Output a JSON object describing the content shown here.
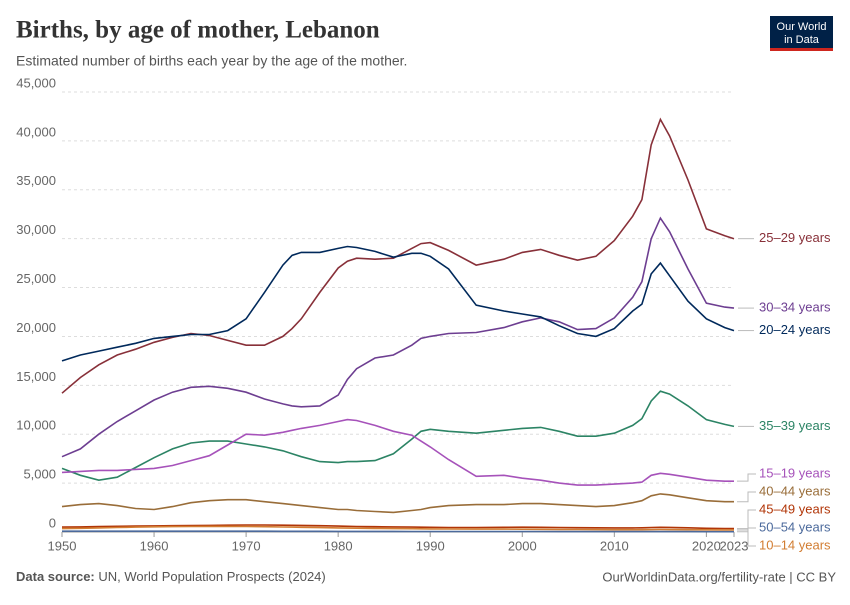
{
  "chart_data": {
    "type": "line",
    "title": "Births, by age of mother, Lebanon",
    "subtitle": "Estimated number of births each year by the age of the mother.",
    "logo": [
      "Our World",
      "in Data"
    ],
    "source_label": "Data source:",
    "source": "UN, World Population Prospects (2024)",
    "footer_right": "OurWorldinData.org/fertility-rate | CC BY",
    "x": [
      1950,
      1952,
      1954,
      1956,
      1958,
      1960,
      1962,
      1964,
      1966,
      1968,
      1970,
      1972,
      1974,
      1975,
      1976,
      1978,
      1980,
      1981,
      1982,
      1984,
      1986,
      1988,
      1989,
      1990,
      1992,
      1995,
      1998,
      2000,
      2002,
      2004,
      2006,
      2008,
      2010,
      2012,
      2013,
      2014,
      2015,
      2016,
      2018,
      2020,
      2022,
      2023
    ],
    "xlim": [
      1950,
      2023
    ],
    "xticks": [
      1950,
      1960,
      1970,
      1980,
      1990,
      2000,
      2010,
      2020,
      2023
    ],
    "ylim": [
      0,
      45000
    ],
    "yticks": [
      0,
      {
        "value": 5000,
        "label": "5,000"
      },
      {
        "value": 10000,
        "label": "10,000"
      },
      {
        "value": 15000,
        "label": "15,000"
      },
      {
        "value": 20000,
        "label": "20,000"
      },
      {
        "value": 25000,
        "label": "25,000"
      },
      {
        "value": 30000,
        "label": "30,000"
      },
      {
        "value": 35000,
        "label": "35,000"
      },
      {
        "value": 40000,
        "label": "40,000"
      },
      {
        "value": 45000,
        "label": "45,000"
      }
    ],
    "grid": true,
    "series": [
      {
        "name": "25–29 years",
        "color": "#883039",
        "values": [
          14200,
          15800,
          17100,
          18100,
          18700,
          19400,
          19900,
          20300,
          20100,
          19600,
          19100,
          19100,
          20000,
          20800,
          21800,
          24500,
          27000,
          27700,
          28000,
          27900,
          28000,
          29000,
          29500,
          29600,
          28800,
          27300,
          27900,
          28600,
          28900,
          28300,
          27800,
          28200,
          29800,
          32300,
          34000,
          39600,
          42200,
          40500,
          36000,
          31000,
          30300,
          30000
        ]
      },
      {
        "name": "30–34 years",
        "color": "#6d3e91",
        "values": [
          7700,
          8500,
          10000,
          11300,
          12400,
          13500,
          14300,
          14800,
          14900,
          14700,
          14300,
          13600,
          13100,
          12900,
          12800,
          12900,
          14000,
          15600,
          16700,
          17800,
          18100,
          19100,
          19800,
          20000,
          20300,
          20400,
          20900,
          21500,
          21900,
          21500,
          20700,
          20800,
          21900,
          24000,
          25600,
          30000,
          32100,
          30700,
          26900,
          23400,
          23000,
          22900
        ]
      },
      {
        "name": "20–24 years",
        "color": "#00295b",
        "values": [
          17500,
          18100,
          18500,
          18900,
          19300,
          19800,
          20000,
          20200,
          20200,
          20600,
          21800,
          24500,
          27300,
          28300,
          28600,
          28600,
          29000,
          29200,
          29100,
          28700,
          28100,
          28500,
          28500,
          28200,
          26900,
          23200,
          22600,
          22300,
          22000,
          21100,
          20300,
          20000,
          20800,
          22600,
          23300,
          26400,
          27500,
          26200,
          23600,
          21800,
          20900,
          20600
        ]
      },
      {
        "name": "35–39 years",
        "color": "#2c8465",
        "values": [
          6500,
          5800,
          5300,
          5600,
          6600,
          7600,
          8500,
          9100,
          9300,
          9300,
          9000,
          8700,
          8300,
          8000,
          7700,
          7200,
          7100,
          7200,
          7200,
          7300,
          8000,
          9500,
          10300,
          10500,
          10300,
          10100,
          10400,
          10600,
          10700,
          10300,
          9800,
          9800,
          10100,
          10900,
          11600,
          13400,
          14400,
          14100,
          12900,
          11500,
          11000,
          10800
        ]
      },
      {
        "name": "15–19 years",
        "color": "#a652ba",
        "values": [
          6100,
          6200,
          6300,
          6300,
          6400,
          6500,
          6800,
          7300,
          7800,
          8900,
          10000,
          9900,
          10200,
          10400,
          10600,
          10900,
          11300,
          11500,
          11400,
          10900,
          10300,
          9900,
          9300,
          8700,
          7400,
          5700,
          5800,
          5500,
          5300,
          5000,
          4800,
          4800,
          4900,
          5000,
          5100,
          5800,
          6000,
          5900,
          5600,
          5300,
          5200,
          5200
        ]
      },
      {
        "name": "40–44 years",
        "color": "#996d39",
        "values": [
          2600,
          2800,
          2900,
          2700,
          2400,
          2300,
          2600,
          3000,
          3200,
          3300,
          3300,
          3100,
          2900,
          2800,
          2700,
          2500,
          2300,
          2300,
          2200,
          2100,
          2000,
          2200,
          2300,
          2500,
          2700,
          2800,
          2800,
          2900,
          2900,
          2800,
          2700,
          2600,
          2700,
          3000,
          3200,
          3700,
          3900,
          3800,
          3500,
          3200,
          3100,
          3100
        ]
      },
      {
        "name": "45–49 years",
        "color": "#b13507",
        "values": [
          500,
          520,
          550,
          580,
          600,
          620,
          640,
          660,
          680,
          700,
          720,
          720,
          700,
          690,
          670,
          640,
          600,
          580,
          560,
          540,
          520,
          500,
          490,
          480,
          460,
          460,
          480,
          490,
          480,
          460,
          440,
          430,
          420,
          420,
          430,
          460,
          480,
          470,
          430,
          380,
          360,
          350
        ]
      },
      {
        "name": "50–54 years",
        "color": "#4c6a9c",
        "values": [
          80,
          80,
          80,
          80,
          80,
          80,
          80,
          80,
          80,
          80,
          80,
          80,
          70,
          70,
          70,
          70,
          60,
          60,
          60,
          60,
          60,
          50,
          50,
          50,
          50,
          50,
          50,
          50,
          50,
          40,
          40,
          40,
          40,
          40,
          40,
          40,
          40,
          40,
          40,
          30,
          30,
          30
        ]
      },
      {
        "name": "10–14 years",
        "color": "#d27d32",
        "values": [
          350,
          380,
          420,
          460,
          500,
          530,
          550,
          560,
          570,
          570,
          560,
          540,
          510,
          500,
          480,
          450,
          420,
          400,
          390,
          370,
          350,
          340,
          330,
          320,
          310,
          300,
          300,
          290,
          280,
          270,
          260,
          250,
          240,
          240,
          240,
          250,
          260,
          250,
          240,
          220,
          210,
          200
        ]
      }
    ]
  }
}
